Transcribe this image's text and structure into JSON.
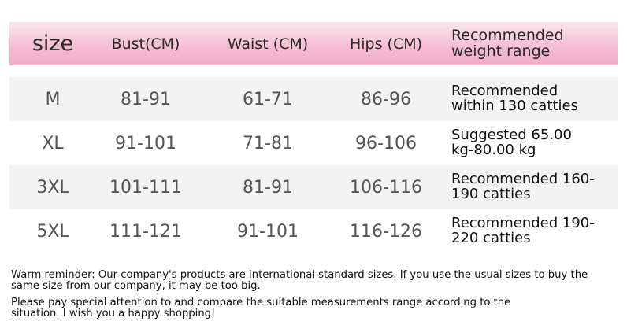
{
  "table": {
    "header": [
      "size",
      "Bust(CM)",
      "Waist (CM)",
      "Hips (CM)",
      "Recommended weight range"
    ],
    "rows": [
      [
        "M",
        "81-91",
        "61-71",
        "86-96",
        "Recommended within 130 catties"
      ],
      [
        "XL",
        "91-101",
        "71-81",
        "96-106",
        "Suggested 65.00 kg-80.00 kg"
      ],
      [
        "3XL",
        "101-111",
        "81-91",
        "106-116",
        "Recommended 160-190 catties"
      ],
      [
        "5XL",
        "111-121",
        "91-101",
        "116-126",
        "Recommended 190-220 catties"
      ]
    ]
  },
  "notes": [
    "Warm reminder: Our company's products are international standard sizes. If you use the usual sizes to buy the same size from our company, it may be too big.",
    "Please pay special attention to and compare the suitable measurements range according to the situation. I wish you a happy shopping!"
  ]
}
